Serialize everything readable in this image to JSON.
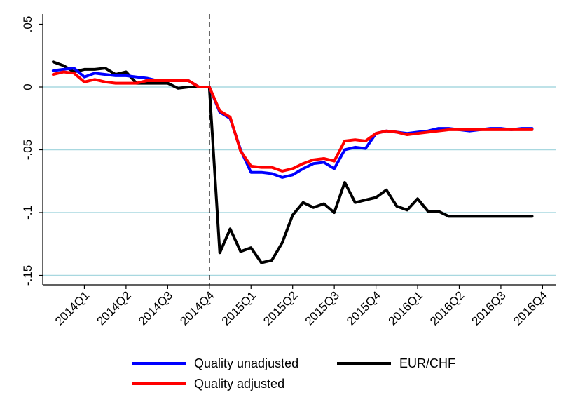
{
  "chart_data": {
    "type": "line",
    "title": "",
    "xlabel": "",
    "ylabel": "",
    "ylim": [
      -0.15,
      0.05
    ],
    "y_ticks": [
      {
        "value": 0.05,
        "label": ".05"
      },
      {
        "value": 0,
        "label": "0"
      },
      {
        "value": -0.05,
        "label": "-.05"
      },
      {
        "value": -0.1,
        "label": "-.1"
      },
      {
        "value": -0.15,
        "label": "-.15"
      }
    ],
    "x_ticks": [
      {
        "value": 1,
        "label": "2014Q1"
      },
      {
        "value": 2,
        "label": "2014Q2"
      },
      {
        "value": 3,
        "label": "2014Q3"
      },
      {
        "value": 4,
        "label": "2014Q4"
      },
      {
        "value": 5,
        "label": "2015Q1"
      },
      {
        "value": 6,
        "label": "2015Q2"
      },
      {
        "value": 7,
        "label": "2015Q3"
      },
      {
        "value": 8,
        "label": "2015Q4"
      },
      {
        "value": 9,
        "label": "2016Q1"
      },
      {
        "value": 10,
        "label": "2016Q2"
      },
      {
        "value": 11,
        "label": "2016Q3"
      },
      {
        "value": 12,
        "label": "2016Q4"
      }
    ],
    "xlim": [
      0.0,
      12.33
    ],
    "vline_x": 4,
    "grid": true,
    "legend_position": "bottom",
    "x": [
      0.25,
      0.5,
      0.75,
      1,
      1.25,
      1.5,
      1.75,
      2,
      2.25,
      2.5,
      2.75,
      3,
      3.25,
      3.5,
      3.75,
      4,
      4.25,
      4.5,
      4.75,
      5,
      5.25,
      5.5,
      5.75,
      6,
      6.25,
      6.5,
      6.75,
      7,
      7.25,
      7.5,
      7.75,
      8,
      8.25,
      8.5,
      8.75,
      9,
      9.25,
      9.5,
      9.75,
      10,
      10.25,
      10.5,
      10.75,
      11,
      11.25,
      11.5,
      11.75
    ],
    "series": [
      {
        "name": "Quality unadjusted",
        "color": "#0000ff",
        "values": [
          0.013,
          0.014,
          0.015,
          0.008,
          0.011,
          0.01,
          0.009,
          0.009,
          0.008,
          0.007,
          0.005,
          0.005,
          0.005,
          0.005,
          0.0,
          0.0,
          -0.02,
          -0.025,
          -0.05,
          -0.068,
          -0.068,
          -0.069,
          -0.072,
          -0.07,
          -0.065,
          -0.061,
          -0.06,
          -0.065,
          -0.05,
          -0.048,
          -0.049,
          -0.037,
          -0.035,
          -0.036,
          -0.037,
          -0.036,
          -0.035,
          -0.033,
          -0.033,
          -0.034,
          -0.035,
          -0.034,
          -0.033,
          -0.033,
          -0.034,
          -0.033,
          -0.033
        ]
      },
      {
        "name": "Quality adjusted",
        "color": "#ff0000",
        "values": [
          0.01,
          0.012,
          0.011,
          0.004,
          0.006,
          0.004,
          0.003,
          0.003,
          0.003,
          0.005,
          0.005,
          0.005,
          0.005,
          0.005,
          0.0,
          0.0,
          -0.019,
          -0.024,
          -0.051,
          -0.063,
          -0.064,
          -0.064,
          -0.067,
          -0.065,
          -0.061,
          -0.058,
          -0.057,
          -0.059,
          -0.043,
          -0.042,
          -0.043,
          -0.037,
          -0.035,
          -0.036,
          -0.038,
          -0.037,
          -0.036,
          -0.035,
          -0.034,
          -0.034,
          -0.034,
          -0.034,
          -0.034,
          -0.034,
          -0.034,
          -0.034,
          -0.034
        ]
      },
      {
        "name": "EUR/CHF",
        "color": "#000000",
        "values": [
          0.02,
          0.017,
          0.012,
          0.014,
          0.014,
          0.015,
          0.01,
          0.012,
          0.003,
          0.003,
          0.003,
          0.003,
          -0.001,
          0.0,
          0.0,
          0.0,
          -0.132,
          -0.113,
          -0.131,
          -0.128,
          -0.14,
          -0.138,
          -0.124,
          -0.102,
          -0.092,
          -0.096,
          -0.093,
          -0.1,
          -0.076,
          -0.092,
          -0.09,
          -0.088,
          -0.082,
          -0.095,
          -0.098,
          -0.089,
          -0.099,
          -0.099,
          -0.103,
          -0.103,
          -0.103,
          -0.103,
          -0.103,
          -0.103,
          -0.103,
          -0.103,
          -0.103
        ]
      }
    ]
  }
}
